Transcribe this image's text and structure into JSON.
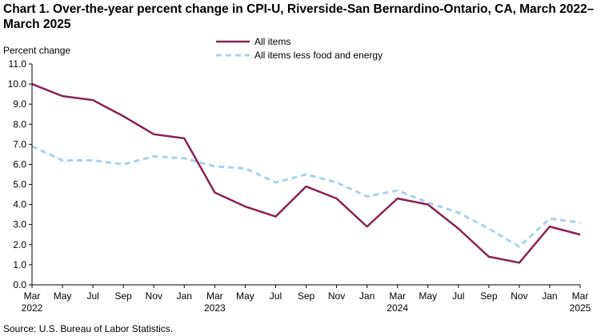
{
  "title": "Chart 1. Over-the-year percent change in CPI-U, Riverside-San Bernardino-Ontario, CA, March 2022–March 2025",
  "source": "Source: U.S. Bureau of Labor Statistics.",
  "colors": {
    "all_items": "#8b2252",
    "core": "#a8d0f0",
    "axis": "#000000"
  },
  "chart_data": {
    "type": "line",
    "title": "Over-the-year percent change in CPI-U, Riverside-San Bernardino-Ontario, CA, March 2022–March 2025",
    "ylabel": "Percent change",
    "xlabel": "",
    "ylim": [
      0,
      11
    ],
    "yticks": [
      "0.0",
      "1.0",
      "2.0",
      "3.0",
      "4.0",
      "5.0",
      "6.0",
      "7.0",
      "8.0",
      "9.0",
      "10.0",
      "11.0"
    ],
    "xticks": [
      "Mar",
      "May",
      "Jul",
      "Sep",
      "Nov",
      "Jan",
      "Mar",
      "May",
      "Jul",
      "Sep",
      "Nov",
      "Jan",
      "Mar",
      "May",
      "Jul",
      "Sep",
      "Nov",
      "Jan",
      "Mar"
    ],
    "year_labels": [
      {
        "index": 0,
        "label": "2022"
      },
      {
        "index": 6,
        "label": "2023"
      },
      {
        "index": 12,
        "label": "2024"
      },
      {
        "index": 18,
        "label": "2025"
      }
    ],
    "grid": false,
    "legend_position": "top-center",
    "series": [
      {
        "name": "All items",
        "style": "solid",
        "values": [
          10.0,
          9.4,
          9.2,
          8.4,
          7.5,
          7.3,
          4.6,
          3.9,
          3.4,
          4.9,
          4.3,
          2.9,
          4.3,
          4.0,
          2.8,
          1.4,
          1.1,
          2.9,
          2.5
        ]
      },
      {
        "name": "All items less food and energy",
        "style": "dashed",
        "values": [
          6.9,
          6.2,
          6.2,
          6.0,
          6.4,
          6.3,
          5.9,
          5.8,
          5.1,
          5.5,
          5.1,
          4.4,
          4.7,
          4.1,
          3.6,
          2.8,
          1.9,
          3.3,
          3.1
        ]
      }
    ]
  }
}
